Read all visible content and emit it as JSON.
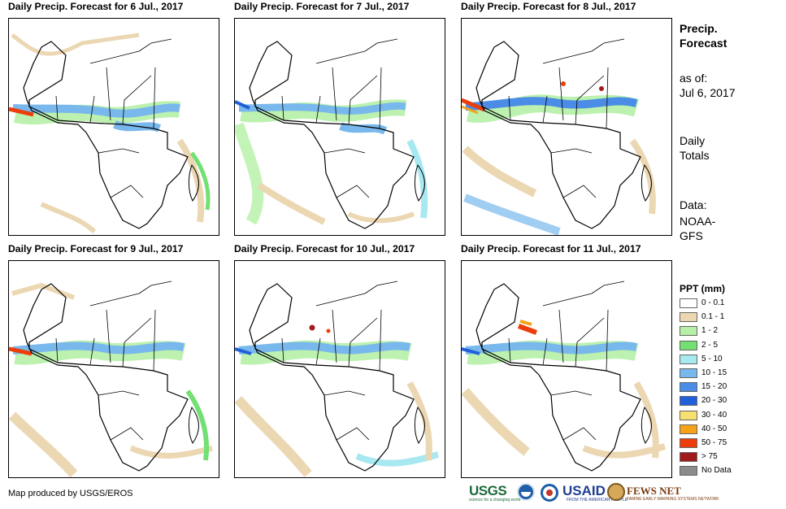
{
  "panels": [
    {
      "title": "Daily Precip. Forecast for 6 Jul., 2017"
    },
    {
      "title": "Daily Precip. Forecast for 7 Jul., 2017"
    },
    {
      "title": "Daily Precip. Forecast for 8 Jul., 2017"
    },
    {
      "title": "Daily Precip. Forecast for 9 Jul., 2017"
    },
    {
      "title": "Daily Precip. Forecast for 10 Jul., 2017"
    },
    {
      "title": "Daily Precip. Forecast for 11 Jul., 2017"
    }
  ],
  "side": {
    "title_line1": "Precip.",
    "title_line2": "Forecast",
    "asof_line1": "as of:",
    "asof_line2": "Jul 6, 2017",
    "daily_line1": "Daily",
    "daily_line2": "Totals",
    "data_line1": "Data:",
    "data_line2": "NOAA-",
    "data_line3": "GFS"
  },
  "legend": {
    "title": "PPT (mm)",
    "items": [
      {
        "label": "0 - 0.1",
        "color": "#ffffff"
      },
      {
        "label": "0.1 - 1",
        "color": "#ecd7b3"
      },
      {
        "label": "1 - 2",
        "color": "#b5f0a6"
      },
      {
        "label": "2 - 5",
        "color": "#72e072"
      },
      {
        "label": "5 - 10",
        "color": "#a8e8f0"
      },
      {
        "label": "10 - 15",
        "color": "#78b8ec"
      },
      {
        "label": "15 - 20",
        "color": "#4a8ce6"
      },
      {
        "label": "20 - 30",
        "color": "#2160d8"
      },
      {
        "label": "30 - 40",
        "color": "#f8e070"
      },
      {
        "label": "40 - 50",
        "color": "#f5a218"
      },
      {
        "label": "50 - 75",
        "color": "#ec3d0a"
      },
      {
        "label": "> 75",
        "color": "#a01c1c"
      },
      {
        "label": "No Data",
        "color": "#8c8c8c"
      }
    ]
  },
  "credit": "Map produced by USGS/EROS",
  "logos": {
    "usgs": "USGS",
    "usgs_tagline": "science for a changing world",
    "usaid": "USAID",
    "usaid_tagline": "FROM THE AMERICAN PEOPLE",
    "fews": "FEWS NET",
    "fews_tagline": "FAMINE EARLY WARNING SYSTEMS NETWORK"
  }
}
